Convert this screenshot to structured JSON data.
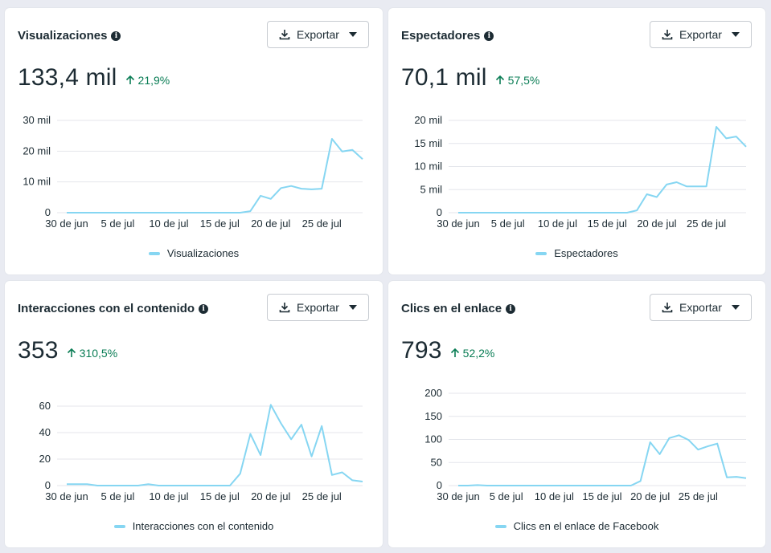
{
  "colors": {
    "line": "#86d6f2",
    "grid": "#e4e6eb",
    "positive": "#0a7d55",
    "text": "#1c2b33"
  },
  "export_label": "Exportar",
  "cards": [
    {
      "title": "Visualizaciones",
      "value": "133,4 mil",
      "change": "21,9%",
      "legend": "Visualizaciones",
      "chart_data": {
        "type": "line",
        "x_tick_labels": [
          "30 de jun",
          "5 de jul",
          "10 de jul",
          "15 de jul",
          "20 de jul",
          "25 de jul"
        ],
        "y_ticks": [
          0,
          10000,
          20000,
          30000
        ],
        "y_tick_labels": [
          "0",
          "10 mil",
          "20 mil",
          "30 mil"
        ],
        "ylim": [
          0,
          30000
        ],
        "series": [
          {
            "name": "Visualizaciones",
            "values": [
              0,
              0,
              0,
              0,
              0,
              0,
              0,
              0,
              0,
              0,
              0,
              0,
              0,
              0,
              0,
              0,
              0,
              0,
              500,
              5500,
              4500,
              8000,
              8700,
              7800,
              7600,
              7800,
              24000,
              19900,
              20400,
              17400
            ]
          }
        ]
      }
    },
    {
      "title": "Espectadores",
      "value": "70,1 mil",
      "change": "57,5%",
      "legend": "Espectadores",
      "chart_data": {
        "type": "line",
        "x_tick_labels": [
          "30 de jun",
          "5 de jul",
          "10 de jul",
          "15 de jul",
          "20 de jul",
          "25 de jul"
        ],
        "y_ticks": [
          0,
          5000,
          10000,
          15000,
          20000
        ],
        "y_tick_labels": [
          "0",
          "5 mil",
          "10 mil",
          "15 mil",
          "20 mil"
        ],
        "ylim": [
          0,
          20000
        ],
        "series": [
          {
            "name": "Espectadores",
            "values": [
              0,
              0,
              0,
              0,
              0,
              0,
              0,
              0,
              0,
              0,
              0,
              0,
              0,
              0,
              0,
              0,
              0,
              0,
              500,
              4000,
              3400,
              6100,
              6600,
              5700,
              5700,
              5700,
              18600,
              16100,
              16500,
              14300
            ]
          }
        ]
      }
    },
    {
      "title": "Interacciones con el contenido",
      "value": "353",
      "change": "310,5%",
      "legend": "Interacciones con el contenido",
      "chart_data": {
        "type": "line",
        "x_tick_labels": [
          "30 de jun",
          "5 de jul",
          "10 de jul",
          "15 de jul",
          "20 de jul",
          "25 de jul"
        ],
        "y_ticks": [
          0,
          20,
          40,
          60
        ],
        "y_tick_labels": [
          "0",
          "20",
          "40",
          "60"
        ],
        "ylim": [
          0,
          60
        ],
        "series": [
          {
            "name": "Interacciones con el contenido",
            "values": [
              1,
              1,
              1,
              0,
              0,
              0,
              0,
              0,
              1,
              0,
              0,
              0,
              0,
              0,
              0,
              0,
              0,
              9,
              39,
              23,
              61,
              47,
              35,
              46,
              22,
              45,
              8,
              10,
              4,
              3
            ]
          }
        ]
      }
    },
    {
      "title": "Clics en el enlace",
      "value": "793",
      "change": "52,2%",
      "legend": "Clics en el enlace de Facebook",
      "chart_data": {
        "type": "line",
        "x_tick_labels": [
          "30 de jun",
          "5 de jul",
          "10 de jul",
          "15 de jul",
          "20 de jul",
          "25 de jul"
        ],
        "y_ticks": [
          0,
          50,
          100,
          150,
          200
        ],
        "y_tick_labels": [
          "0",
          "50",
          "100",
          "150",
          "200"
        ],
        "ylim": [
          0,
          200
        ],
        "series": [
          {
            "name": "Clics en el enlace de Facebook",
            "values": [
              0,
              0,
              1,
              0,
              0,
              0,
              0,
              0,
              0,
              0,
              0,
              0,
              0,
              0,
              0,
              0,
              0,
              0,
              0,
              10,
              94,
              68,
              103,
              109,
              99,
              78,
              85,
              91,
              18,
              19,
              16
            ]
          }
        ]
      }
    }
  ]
}
